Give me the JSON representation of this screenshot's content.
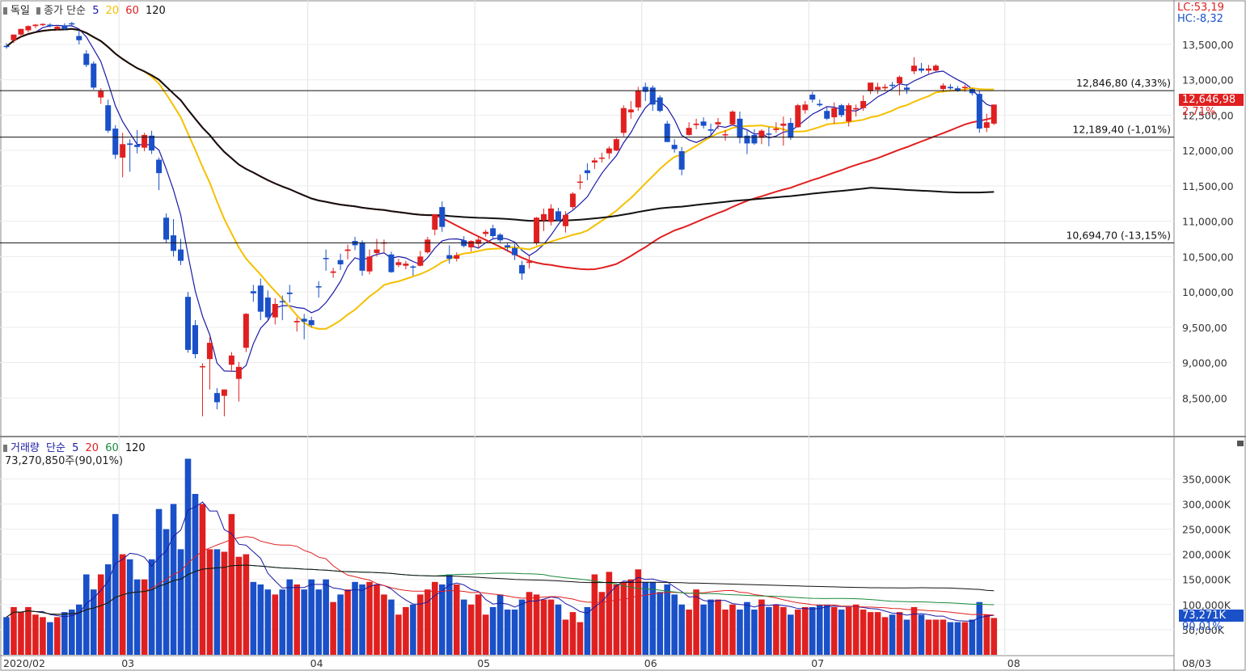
{
  "price_panel": {
    "title": "독일",
    "ma_label": "종가 단순",
    "ma_periods": [
      "5",
      "20",
      "60",
      "120"
    ],
    "ma_colors": [
      "#1a1aa6",
      "#f5c000",
      "#e02020",
      "#111111"
    ],
    "lc": "LC:53,19",
    "hc": "HC:-8,32",
    "current_price": "12,646,98",
    "current_change": "2,71%",
    "h_lines": [
      {
        "value": 12846.8,
        "label": "12,846,80 (4,33%)"
      },
      {
        "value": 12189.4,
        "label": "12,189,40 (-1,01%)"
      },
      {
        "value": 10694.7,
        "label": "10,694,70 (-13,15%)"
      }
    ],
    "y_ticks": [
      "13,500,00",
      "13,000,00",
      "12,500,00",
      "12,000,00",
      "11,500,00",
      "11,000,00",
      "10,500,00",
      "10,000,00",
      "9,500,00",
      "9,000,00",
      "8,500,00"
    ]
  },
  "volume_panel": {
    "title": "거래량",
    "ma_label": "단순",
    "ma_periods": [
      "5",
      "20",
      "60",
      "120"
    ],
    "ma_colors": [
      "#1a1aa6",
      "#e02020",
      "#1a8a3a",
      "#111111"
    ],
    "current_volume_text": "73,270,850주(90,01%)",
    "current_volume_badge": "73,271K",
    "current_volume_pct": "90,01%",
    "y_ticks": [
      "350,000K",
      "300,000K",
      "250,000K",
      "200,000K",
      "150,000K",
      "100,000K",
      "50,000K"
    ]
  },
  "x_axis": {
    "labels": [
      "2020/02",
      "03",
      "04",
      "05",
      "06",
      "07",
      "08"
    ],
    "right_label": "08/03"
  },
  "chart_data": {
    "type": "candlestick",
    "title": "독일",
    "y_range": [
      8000,
      13900
    ],
    "volume_range_k": [
      0,
      410000
    ],
    "candles": [
      {
        "o": 13480,
        "h": 13520,
        "l": 13440,
        "c": 13470,
        "v": 75000
      },
      {
        "o": 13560,
        "h": 13620,
        "l": 13520,
        "c": 13640,
        "v": 95000
      },
      {
        "o": 13640,
        "h": 13720,
        "l": 13600,
        "c": 13720,
        "v": 85000
      },
      {
        "o": 13700,
        "h": 13770,
        "l": 13670,
        "c": 13760,
        "v": 95000
      },
      {
        "o": 13760,
        "h": 13790,
        "l": 13730,
        "c": 13780,
        "v": 80000
      },
      {
        "o": 13790,
        "h": 13800,
        "l": 13760,
        "c": 13790,
        "v": 75000
      },
      {
        "o": 13780,
        "h": 13800,
        "l": 13740,
        "c": 13770,
        "v": 65000
      },
      {
        "o": 13720,
        "h": 13770,
        "l": 13700,
        "c": 13750,
        "v": 75000
      },
      {
        "o": 13770,
        "h": 13800,
        "l": 13700,
        "c": 13720,
        "v": 85000
      },
      {
        "o": 13800,
        "h": 13820,
        "l": 13760,
        "c": 13790,
        "v": 90000
      },
      {
        "o": 13620,
        "h": 13700,
        "l": 13500,
        "c": 13560,
        "v": 100000
      },
      {
        "o": 13370,
        "h": 13420,
        "l": 13180,
        "c": 13210,
        "v": 160000
      },
      {
        "o": 13230,
        "h": 13260,
        "l": 12860,
        "c": 12890,
        "v": 130000
      },
      {
        "o": 12750,
        "h": 12880,
        "l": 12660,
        "c": 12840,
        "v": 160000
      },
      {
        "o": 12640,
        "h": 12720,
        "l": 12250,
        "c": 12280,
        "v": 180000
      },
      {
        "o": 12310,
        "h": 12360,
        "l": 11880,
        "c": 11940,
        "v": 280000
      },
      {
        "o": 11900,
        "h": 12250,
        "l": 11620,
        "c": 12090,
        "v": 200000
      },
      {
        "o": 12100,
        "h": 12160,
        "l": 11700,
        "c": 12080,
        "v": 190000
      },
      {
        "o": 12080,
        "h": 12290,
        "l": 11960,
        "c": 12050,
        "v": 150000
      },
      {
        "o": 12040,
        "h": 12250,
        "l": 11990,
        "c": 12220,
        "v": 150000
      },
      {
        "o": 12210,
        "h": 12280,
        "l": 11950,
        "c": 12000,
        "v": 190000
      },
      {
        "o": 11870,
        "h": 11900,
        "l": 11440,
        "c": 11680,
        "v": 290000
      },
      {
        "o": 11050,
        "h": 11110,
        "l": 10690,
        "c": 10740,
        "v": 250000
      },
      {
        "o": 10800,
        "h": 11030,
        "l": 10500,
        "c": 10580,
        "v": 300000
      },
      {
        "o": 10600,
        "h": 10750,
        "l": 10380,
        "c": 10440,
        "v": 210000
      },
      {
        "o": 9930,
        "h": 10000,
        "l": 9140,
        "c": 9180,
        "v": 390000
      },
      {
        "o": 9530,
        "h": 9600,
        "l": 9060,
        "c": 9120,
        "v": 320000
      },
      {
        "o": 8950,
        "h": 8990,
        "l": 8240,
        "c": 8950,
        "v": 300000
      },
      {
        "o": 9050,
        "h": 9360,
        "l": 8620,
        "c": 9280,
        "v": 210000
      },
      {
        "o": 8570,
        "h": 8640,
        "l": 8340,
        "c": 8440,
        "v": 210000
      },
      {
        "o": 8530,
        "h": 8620,
        "l": 8240,
        "c": 8620,
        "v": 205000
      },
      {
        "o": 8970,
        "h": 9150,
        "l": 8870,
        "c": 9100,
        "v": 280000
      },
      {
        "o": 8770,
        "h": 9010,
        "l": 8450,
        "c": 8940,
        "v": 195000
      },
      {
        "o": 9210,
        "h": 9700,
        "l": 9150,
        "c": 9690,
        "v": 200000
      },
      {
        "o": 10010,
        "h": 10100,
        "l": 9860,
        "c": 9980,
        "v": 145000
      },
      {
        "o": 10090,
        "h": 10190,
        "l": 9600,
        "c": 9720,
        "v": 140000
      },
      {
        "o": 9920,
        "h": 10020,
        "l": 9600,
        "c": 9640,
        "v": 130000
      },
      {
        "o": 9640,
        "h": 9910,
        "l": 9540,
        "c": 9830,
        "v": 120000
      },
      {
        "o": 9870,
        "h": 9950,
        "l": 9600,
        "c": 9860,
        "v": 130000
      },
      {
        "o": 9990,
        "h": 10100,
        "l": 9850,
        "c": 9970,
        "v": 150000
      },
      {
        "o": 9570,
        "h": 9640,
        "l": 9440,
        "c": 9590,
        "v": 140000
      },
      {
        "o": 9620,
        "h": 9690,
        "l": 9330,
        "c": 9580,
        "v": 130000
      },
      {
        "o": 9600,
        "h": 9650,
        "l": 9500,
        "c": 9530,
        "v": 150000
      },
      {
        "o": 10080,
        "h": 10150,
        "l": 9920,
        "c": 10070,
        "v": 130000
      },
      {
        "o": 10480,
        "h": 10600,
        "l": 10300,
        "c": 10470,
        "v": 150000
      },
      {
        "o": 10270,
        "h": 10340,
        "l": 10200,
        "c": 10290,
        "v": 105000
      },
      {
        "o": 10450,
        "h": 10540,
        "l": 10310,
        "c": 10390,
        "v": 120000
      },
      {
        "o": 10580,
        "h": 10670,
        "l": 10460,
        "c": 10600,
        "v": 130000
      },
      {
        "o": 10720,
        "h": 10780,
        "l": 10590,
        "c": 10660,
        "v": 145000
      },
      {
        "o": 10700,
        "h": 10730,
        "l": 10230,
        "c": 10300,
        "v": 140000
      },
      {
        "o": 10290,
        "h": 10600,
        "l": 10250,
        "c": 10500,
        "v": 145000
      },
      {
        "o": 10550,
        "h": 10750,
        "l": 10500,
        "c": 10600,
        "v": 140000
      },
      {
        "o": 10690,
        "h": 10740,
        "l": 10560,
        "c": 10700,
        "v": 120000
      },
      {
        "o": 10530,
        "h": 10570,
        "l": 10270,
        "c": 10280,
        "v": 110000
      },
      {
        "o": 10380,
        "h": 10470,
        "l": 10350,
        "c": 10420,
        "v": 80000
      },
      {
        "o": 10370,
        "h": 10440,
        "l": 10320,
        "c": 10400,
        "v": 95000
      },
      {
        "o": 10360,
        "h": 10380,
        "l": 10230,
        "c": 10350,
        "v": 100000
      },
      {
        "o": 10370,
        "h": 10580,
        "l": 10360,
        "c": 10500,
        "v": 120000
      },
      {
        "o": 10560,
        "h": 10780,
        "l": 10540,
        "c": 10740,
        "v": 130000
      },
      {
        "o": 10880,
        "h": 11100,
        "l": 10800,
        "c": 11100,
        "v": 145000
      },
      {
        "o": 11200,
        "h": 11280,
        "l": 10850,
        "c": 10920,
        "v": 140000
      },
      {
        "o": 10520,
        "h": 10660,
        "l": 10400,
        "c": 10470,
        "v": 160000
      },
      {
        "o": 10470,
        "h": 10560,
        "l": 10430,
        "c": 10520,
        "v": 140000
      },
      {
        "o": 10730,
        "h": 10790,
        "l": 10630,
        "c": 10650,
        "v": 110000
      },
      {
        "o": 10630,
        "h": 10730,
        "l": 10570,
        "c": 10720,
        "v": 100000
      },
      {
        "o": 10680,
        "h": 10780,
        "l": 10620,
        "c": 10740,
        "v": 120000
      },
      {
        "o": 10820,
        "h": 10880,
        "l": 10780,
        "c": 10850,
        "v": 80000
      },
      {
        "o": 10900,
        "h": 10950,
        "l": 10740,
        "c": 10790,
        "v": 95000
      },
      {
        "o": 10810,
        "h": 10830,
        "l": 10700,
        "c": 10730,
        "v": 120000
      },
      {
        "o": 10660,
        "h": 10690,
        "l": 10570,
        "c": 10630,
        "v": 90000
      },
      {
        "o": 10620,
        "h": 10680,
        "l": 10450,
        "c": 10520,
        "v": 90000
      },
      {
        "o": 10380,
        "h": 10440,
        "l": 10170,
        "c": 10260,
        "v": 110000
      },
      {
        "o": 10410,
        "h": 10510,
        "l": 10330,
        "c": 10430,
        "v": 125000
      },
      {
        "o": 10690,
        "h": 11060,
        "l": 10660,
        "c": 11050,
        "v": 120000
      },
      {
        "o": 11010,
        "h": 11180,
        "l": 10860,
        "c": 11100,
        "v": 110000
      },
      {
        "o": 10990,
        "h": 11240,
        "l": 10940,
        "c": 11180,
        "v": 110000
      },
      {
        "o": 11140,
        "h": 11190,
        "l": 11000,
        "c": 11010,
        "v": 100000
      },
      {
        "o": 10930,
        "h": 11140,
        "l": 10840,
        "c": 11090,
        "v": 70000
      },
      {
        "o": 11200,
        "h": 11410,
        "l": 11170,
        "c": 11390,
        "v": 85000
      },
      {
        "o": 11560,
        "h": 11660,
        "l": 11450,
        "c": 11560,
        "v": 65000
      },
      {
        "o": 11720,
        "h": 11820,
        "l": 11580,
        "c": 11680,
        "v": 95000
      },
      {
        "o": 11830,
        "h": 11900,
        "l": 11740,
        "c": 11860,
        "v": 160000
      },
      {
        "o": 11900,
        "h": 11970,
        "l": 11830,
        "c": 11900,
        "v": 125000
      },
      {
        "o": 11960,
        "h": 12060,
        "l": 11880,
        "c": 12030,
        "v": 165000
      },
      {
        "o": 12000,
        "h": 12180,
        "l": 11990,
        "c": 12160,
        "v": 140000
      },
      {
        "o": 12250,
        "h": 12640,
        "l": 12200,
        "c": 12600,
        "v": 145000
      },
      {
        "o": 12540,
        "h": 12700,
        "l": 12450,
        "c": 12580,
        "v": 150000
      },
      {
        "o": 12610,
        "h": 12900,
        "l": 12560,
        "c": 12850,
        "v": 170000
      },
      {
        "o": 12900,
        "h": 12960,
        "l": 12700,
        "c": 12830,
        "v": 145000
      },
      {
        "o": 12890,
        "h": 12920,
        "l": 12560,
        "c": 12650,
        "v": 145000
      },
      {
        "o": 12750,
        "h": 12780,
        "l": 12540,
        "c": 12560,
        "v": 125000
      },
      {
        "o": 12380,
        "h": 12420,
        "l": 12120,
        "c": 12120,
        "v": 140000
      },
      {
        "o": 12080,
        "h": 12160,
        "l": 11970,
        "c": 12020,
        "v": 120000
      },
      {
        "o": 11990,
        "h": 12050,
        "l": 11650,
        "c": 11730,
        "v": 100000
      },
      {
        "o": 12220,
        "h": 12400,
        "l": 12210,
        "c": 12320,
        "v": 90000
      },
      {
        "o": 12360,
        "h": 12450,
        "l": 12300,
        "c": 12380,
        "v": 130000
      },
      {
        "o": 12410,
        "h": 12470,
        "l": 12310,
        "c": 12350,
        "v": 100000
      },
      {
        "o": 12300,
        "h": 12380,
        "l": 12200,
        "c": 12280,
        "v": 110000
      },
      {
        "o": 12370,
        "h": 12460,
        "l": 12300,
        "c": 12400,
        "v": 110000
      },
      {
        "o": 12220,
        "h": 12290,
        "l": 12140,
        "c": 12230,
        "v": 90000
      },
      {
        "o": 12370,
        "h": 12570,
        "l": 12350,
        "c": 12550,
        "v": 100000
      },
      {
        "o": 12450,
        "h": 12550,
        "l": 12100,
        "c": 12180,
        "v": 90000
      },
      {
        "o": 12210,
        "h": 12300,
        "l": 11950,
        "c": 12100,
        "v": 105000
      },
      {
        "o": 12220,
        "h": 12300,
        "l": 12080,
        "c": 12100,
        "v": 90000
      },
      {
        "o": 12180,
        "h": 12300,
        "l": 12090,
        "c": 12280,
        "v": 110000
      },
      {
        "o": 12240,
        "h": 12330,
        "l": 12060,
        "c": 12230,
        "v": 95000
      },
      {
        "o": 12290,
        "h": 12400,
        "l": 12250,
        "c": 12310,
        "v": 100000
      },
      {
        "o": 12350,
        "h": 12480,
        "l": 12070,
        "c": 12380,
        "v": 95000
      },
      {
        "o": 12390,
        "h": 12460,
        "l": 12150,
        "c": 12180,
        "v": 80000
      },
      {
        "o": 12330,
        "h": 12660,
        "l": 12320,
        "c": 12640,
        "v": 90000
      },
      {
        "o": 12570,
        "h": 12700,
        "l": 12520,
        "c": 12650,
        "v": 95000
      },
      {
        "o": 12790,
        "h": 12830,
        "l": 12680,
        "c": 12720,
        "v": 95000
      },
      {
        "o": 12660,
        "h": 12720,
        "l": 12620,
        "c": 12640,
        "v": 100000
      },
      {
        "o": 12560,
        "h": 12610,
        "l": 12430,
        "c": 12450,
        "v": 100000
      },
      {
        "o": 12470,
        "h": 12680,
        "l": 12380,
        "c": 12600,
        "v": 95000
      },
      {
        "o": 12640,
        "h": 12660,
        "l": 12470,
        "c": 12500,
        "v": 90000
      },
      {
        "o": 12410,
        "h": 12670,
        "l": 12340,
        "c": 12640,
        "v": 95000
      },
      {
        "o": 12580,
        "h": 12650,
        "l": 12480,
        "c": 12600,
        "v": 100000
      },
      {
        "o": 12600,
        "h": 12780,
        "l": 12560,
        "c": 12700,
        "v": 90000
      },
      {
        "o": 12840,
        "h": 12960,
        "l": 12800,
        "c": 12960,
        "v": 85000
      },
      {
        "o": 12860,
        "h": 12960,
        "l": 12800,
        "c": 12900,
        "v": 85000
      },
      {
        "o": 12880,
        "h": 12940,
        "l": 12840,
        "c": 12900,
        "v": 75000
      },
      {
        "o": 12930,
        "h": 12970,
        "l": 12860,
        "c": 12920,
        "v": 80000
      },
      {
        "o": 12950,
        "h": 13060,
        "l": 12780,
        "c": 13040,
        "v": 85000
      },
      {
        "o": 12890,
        "h": 12940,
        "l": 12800,
        "c": 12860,
        "v": 70000
      },
      {
        "o": 13120,
        "h": 13320,
        "l": 13080,
        "c": 13200,
        "v": 95000
      },
      {
        "o": 13160,
        "h": 13240,
        "l": 13100,
        "c": 13130,
        "v": 80000
      },
      {
        "o": 13130,
        "h": 13210,
        "l": 13090,
        "c": 13160,
        "v": 70000
      },
      {
        "o": 13130,
        "h": 13220,
        "l": 13120,
        "c": 13200,
        "v": 70000
      },
      {
        "o": 12870,
        "h": 12950,
        "l": 12830,
        "c": 12920,
        "v": 70000
      },
      {
        "o": 12900,
        "h": 12940,
        "l": 12860,
        "c": 12880,
        "v": 65000
      },
      {
        "o": 12880,
        "h": 12910,
        "l": 12830,
        "c": 12840,
        "v": 65000
      },
      {
        "o": 12890,
        "h": 12930,
        "l": 12830,
        "c": 12900,
        "v": 65000
      },
      {
        "o": 12870,
        "h": 12880,
        "l": 12780,
        "c": 12810,
        "v": 70000
      },
      {
        "o": 12800,
        "h": 12850,
        "l": 12250,
        "c": 12310,
        "v": 105000
      },
      {
        "o": 12320,
        "h": 12520,
        "l": 12260,
        "c": 12400,
        "v": 80000
      },
      {
        "o": 12380,
        "h": 12650,
        "l": 12360,
        "c": 12650,
        "v": 73271
      }
    ]
  }
}
